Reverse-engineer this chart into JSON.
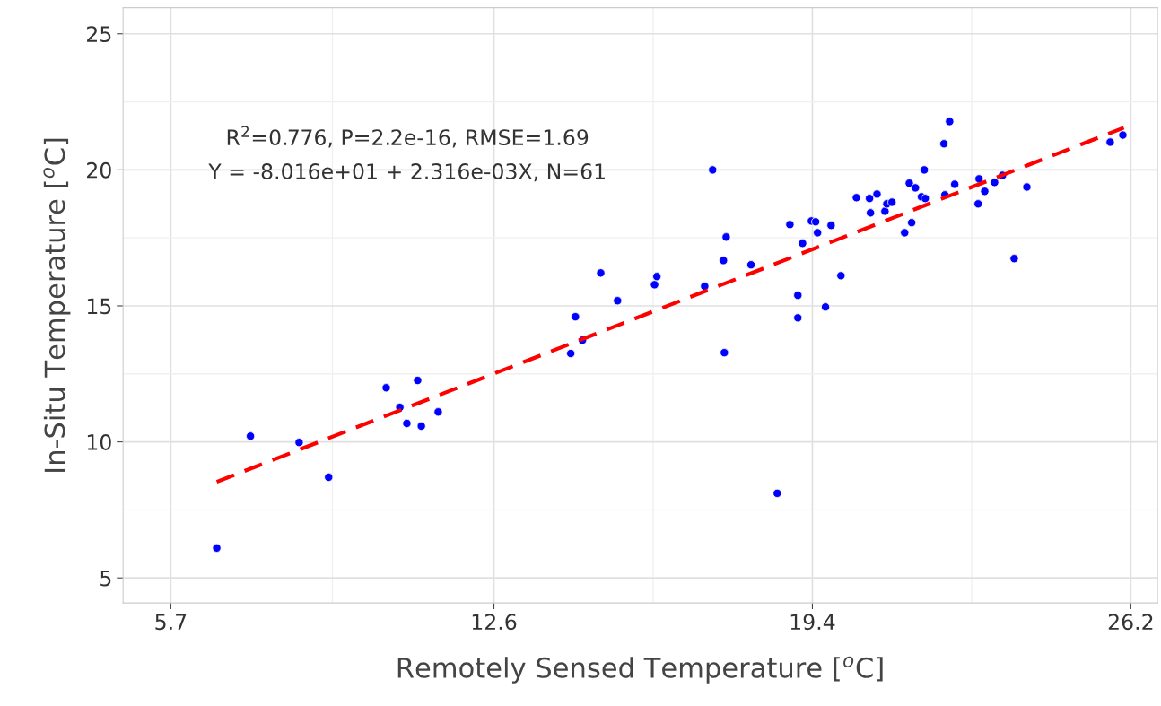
{
  "chart_data": {
    "type": "scatter",
    "xlabel": "Remotely Sensed Temperature [$^{o}$C]",
    "ylabel": "In-Situ Temperature [$^{o}$C]",
    "annotations": [
      "R$^{2}$=0.776, P=2.2e-16, RMSE=1.69",
      "Y = -8.016e+01 + 2.316e-03X, N=61"
    ],
    "xlim": [
      4.68,
      26.77
    ],
    "ylim": [
      4.08,
      25.96
    ],
    "xticks": [
      5.7,
      12.6,
      19.4,
      26.2
    ],
    "yticks": [
      5,
      10,
      15,
      20,
      25
    ],
    "grid": true,
    "series": [
      {
        "color": "#0000ff",
        "marker": "circle",
        "x": [
          6.68,
          7.4,
          8.44,
          9.07,
          10.3,
          10.59,
          10.74,
          10.97,
          11.05,
          11.41,
          14.24,
          14.34,
          14.49,
          14.88,
          15.24,
          16.03,
          16.08,
          17.1,
          17.27,
          17.5,
          17.56,
          17.52,
          18.09,
          18.65,
          18.92,
          19.09,
          19.09,
          19.19,
          19.38,
          19.47,
          19.51,
          19.68,
          19.8,
          20.01,
          20.34,
          20.62,
          20.64,
          20.78,
          20.95,
          20.99,
          21.1,
          21.37,
          21.47,
          21.52,
          21.6,
          21.73,
          21.79,
          21.81,
          22.21,
          22.23,
          22.33,
          22.44,
          22.94,
          22.96,
          23.08,
          23.29,
          23.46,
          23.71,
          23.98,
          25.76,
          26.03
        ],
        "values": [
          6.1,
          10.21,
          9.98,
          8.7,
          11.99,
          11.27,
          10.68,
          12.26,
          10.58,
          11.1,
          13.25,
          14.6,
          13.74,
          16.21,
          15.19,
          15.78,
          16.08,
          15.72,
          20.0,
          16.67,
          17.53,
          13.28,
          16.51,
          8.11,
          17.99,
          15.39,
          14.56,
          17.3,
          18.12,
          18.09,
          17.69,
          14.96,
          17.96,
          16.11,
          18.98,
          18.95,
          18.42,
          19.11,
          18.48,
          18.75,
          18.81,
          17.69,
          19.51,
          18.06,
          19.34,
          19.01,
          20.0,
          18.95,
          20.96,
          19.08,
          21.78,
          19.47,
          18.75,
          19.67,
          19.21,
          19.54,
          19.8,
          16.74,
          19.37,
          21.02,
          21.28
        ]
      },
      {
        "type": "line",
        "color": "#ff0000",
        "line_style": "dashed",
        "x": [
          6.68,
          26.05
        ],
        "values": [
          8.53,
          21.55
        ]
      }
    ]
  }
}
